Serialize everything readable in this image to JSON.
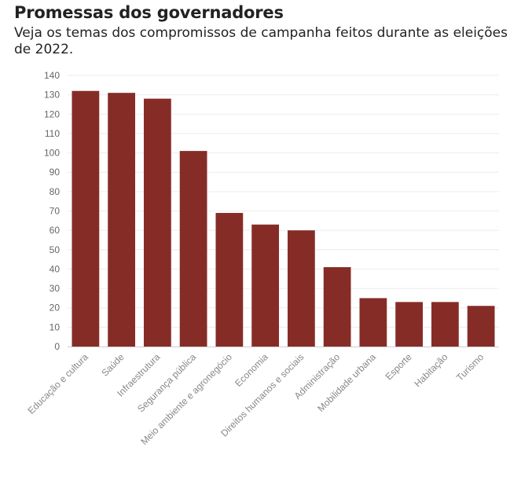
{
  "title": "Promessas dos governadores",
  "subtitle": "Veja os temas dos compromissos de campanha feitos durante as eleições de 2022.",
  "bar_color": "#862c27",
  "grid_color": "#ececec",
  "chart_data": {
    "type": "bar",
    "categories": [
      "Educação e cultura",
      "Saúde",
      "Infraestrutura",
      "Segurança pública",
      "Meio ambiente e agronegócio",
      "Economia",
      "Direitos humanos e sociais",
      "Administração",
      "Mobilidade urbana",
      "Esporte",
      "Habitação",
      "Turismo"
    ],
    "values": [
      132,
      131,
      128,
      101,
      69,
      63,
      60,
      41,
      25,
      23,
      23,
      21
    ],
    "ylim": [
      0,
      140
    ],
    "yticks": [
      0,
      10,
      20,
      30,
      40,
      50,
      60,
      70,
      80,
      90,
      100,
      110,
      120,
      130,
      140
    ],
    "grid": true,
    "legend": false
  }
}
